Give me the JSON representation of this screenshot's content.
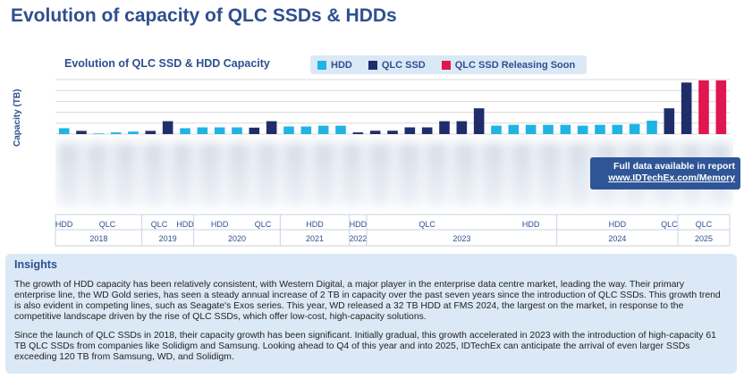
{
  "page": {
    "title": "Evolution of capacity of QLC SSDs & HDDs"
  },
  "colors": {
    "hdd": "#1fb4e4",
    "qlc_ssd": "#1f2d6b",
    "qlc_soon": "#e0174f",
    "axis": "#2f4f8f"
  },
  "chart_data": {
    "type": "bar",
    "title": "Evolution of QLC SSD & HDD Capacity",
    "xlabel": "",
    "ylabel": "Capacity (TB)",
    "ylim": [
      0,
      130
    ],
    "grid": true,
    "legend_placement": "top",
    "legend": [
      {
        "label": "HDD",
        "color_key": "hdd"
      },
      {
        "label": "QLC SSD",
        "color_key": "qlc_ssd"
      },
      {
        "label": "QLC SSD Releasing Soon",
        "color_key": "qlc_soon"
      }
    ],
    "bars": [
      {
        "type": "hdd",
        "value": 14
      },
      {
        "type": "qlc_ssd",
        "value": 7.68
      },
      {
        "type": "hdd",
        "value": 1.5
      },
      {
        "type": "hdd",
        "value": 4
      },
      {
        "type": "hdd",
        "value": 6
      },
      {
        "type": "qlc_ssd",
        "value": 7.68
      },
      {
        "type": "qlc_ssd",
        "value": 30.72
      },
      {
        "type": "hdd",
        "value": 14
      },
      {
        "type": "hdd",
        "value": 16
      },
      {
        "type": "hdd",
        "value": 16
      },
      {
        "type": "hdd",
        "value": 16
      },
      {
        "type": "qlc_ssd",
        "value": 15.36
      },
      {
        "type": "qlc_ssd",
        "value": 30.72
      },
      {
        "type": "hdd",
        "value": 18
      },
      {
        "type": "hdd",
        "value": 18
      },
      {
        "type": "hdd",
        "value": 20
      },
      {
        "type": "hdd",
        "value": 20
      },
      {
        "type": "qlc_ssd",
        "value": 4
      },
      {
        "type": "qlc_ssd",
        "value": 8
      },
      {
        "type": "qlc_ssd",
        "value": 8
      },
      {
        "type": "qlc_ssd",
        "value": 16
      },
      {
        "type": "qlc_ssd",
        "value": 16
      },
      {
        "type": "qlc_ssd",
        "value": 30.72
      },
      {
        "type": "qlc_ssd",
        "value": 30.72
      },
      {
        "type": "qlc_ssd",
        "value": 61.44
      },
      {
        "type": "hdd",
        "value": 20
      },
      {
        "type": "hdd",
        "value": 22
      },
      {
        "type": "hdd",
        "value": 22
      },
      {
        "type": "hdd",
        "value": 22
      },
      {
        "type": "hdd",
        "value": 22
      },
      {
        "type": "hdd",
        "value": 20
      },
      {
        "type": "hdd",
        "value": 22
      },
      {
        "type": "hdd",
        "value": 22
      },
      {
        "type": "hdd",
        "value": 24
      },
      {
        "type": "hdd",
        "value": 32
      },
      {
        "type": "qlc_ssd",
        "value": 61.44
      },
      {
        "type": "qlc_ssd",
        "value": 122.88
      },
      {
        "type": "qlc_soon",
        "value": 128
      },
      {
        "type": "qlc_soon",
        "value": 128
      }
    ],
    "type_labels": [
      {
        "label": "HDD",
        "from": 0,
        "to": 0
      },
      {
        "label": "QLC",
        "from": 1,
        "to": 4
      },
      {
        "label": "QLC",
        "from": 5,
        "to": 6
      },
      {
        "label": "HDD",
        "from": 7,
        "to": 7
      },
      {
        "label": "HDD",
        "from": 8,
        "to": 10
      },
      {
        "label": "QLC",
        "from": 11,
        "to": 12
      },
      {
        "label": "HDD",
        "from": 13,
        "to": 16
      },
      {
        "label": "HDD",
        "from": 17,
        "to": 17
      },
      {
        "label": "QLC",
        "from": 18,
        "to": 24
      },
      {
        "label": "HDD",
        "from": 25,
        "to": 34
      },
      {
        "label": "HDD",
        "from": 25,
        "to": 34
      },
      {
        "label": "QLC",
        "from": 35,
        "to": 35
      },
      {
        "label": "QLC",
        "from": 36,
        "to": 38
      }
    ],
    "years": [
      {
        "label": "2018",
        "from": 0,
        "to": 4
      },
      {
        "label": "2019",
        "from": 5,
        "to": 7
      },
      {
        "label": "2020",
        "from": 8,
        "to": 12
      },
      {
        "label": "2021",
        "from": 13,
        "to": 16
      },
      {
        "label": "2022",
        "from": 17,
        "to": 17
      },
      {
        "label": "2023",
        "from": 18,
        "to": 28
      },
      {
        "label": "2024",
        "from": 29,
        "to": 35
      },
      {
        "label": "2025",
        "from": 36,
        "to": 38
      }
    ]
  },
  "info_box": {
    "line1": "Full data available in report",
    "line2": "www.IDTechEx.com/Memory"
  },
  "insights": {
    "title": "Insights",
    "p1": "The growth of HDD capacity has been relatively consistent, with Western Digital, a major player in the enterprise data centre market, leading the way. Their primary enterprise line, the WD Gold series, has seen a steady annual increase of 2 TB in capacity over the past seven years since the introduction of QLC SSDs. This growth trend is also evident in competing lines, such as Seagate's Exos series. This year, WD released a 32 TB HDD at FMS 2024, the largest on the market, in response to the competitive landscape driven by the rise of QLC SSDs, which offer low-cost, high-capacity solutions.",
    "p2": "Since the launch of QLC SSDs in 2018, their capacity growth has been significant. Initially gradual, this growth accelerated in 2023 with the introduction of high-capacity 61 TB QLC SSDs from companies like Solidigm and Samsung. Looking ahead to Q4 of this year and into 2025, IDTechEx can anticipate the arrival of even larger SSDs exceeding 120 TB from Samsung, WD, and Solidigm."
  }
}
